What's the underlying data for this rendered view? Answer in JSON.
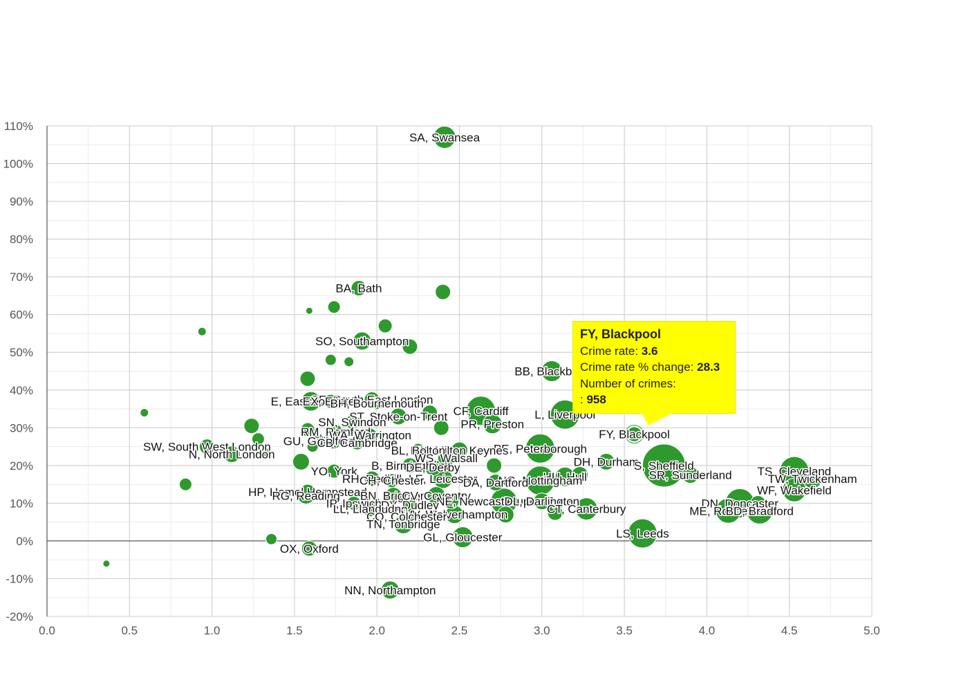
{
  "chart_data": {
    "type": "scatter",
    "subtype": "bubble",
    "xlim": [
      0,
      5
    ],
    "ylim": [
      -20,
      110
    ],
    "x_ticks": [
      "0.0",
      "0.5",
      "1.0",
      "1.5",
      "2.0",
      "2.5",
      "3.0",
      "3.5",
      "4.0",
      "4.5",
      "5.0"
    ],
    "y_ticks": [
      "110%",
      "100%",
      "90%",
      "80%",
      "70%",
      "60%",
      "50%",
      "40%",
      "30%",
      "20%",
      "10%",
      "0%",
      "-10%",
      "-20%"
    ],
    "grid": true,
    "bubble_color": "#2e9a2e",
    "highlight_label_color": "#ffff00",
    "points": [
      {
        "label": "SA, Swansea",
        "x": 2.41,
        "y": 107,
        "r": 16
      },
      {
        "label": "",
        "x": 2.4,
        "y": 66,
        "r": 11
      },
      {
        "label": "BA, Bath",
        "x": 1.89,
        "y": 67,
        "r": 11
      },
      {
        "label": "",
        "x": 1.59,
        "y": 61,
        "r": 5
      },
      {
        "label": "",
        "x": 1.74,
        "y": 62,
        "r": 9
      },
      {
        "label": "",
        "x": 2.05,
        "y": 57,
        "r": 10
      },
      {
        "label": "",
        "x": 0.94,
        "y": 55.5,
        "r": 6
      },
      {
        "label": "SO, Southampton",
        "x": 1.91,
        "y": 53,
        "r": 13
      },
      {
        "label": "",
        "x": 2.2,
        "y": 51.5,
        "r": 11
      },
      {
        "label": "",
        "x": 1.72,
        "y": 48,
        "r": 8
      },
      {
        "label": "",
        "x": 1.83,
        "y": 47.5,
        "r": 7
      },
      {
        "label": "BB, Blackburn",
        "x": 3.06,
        "y": 45,
        "r": 15
      },
      {
        "label": "",
        "x": 1.58,
        "y": 43,
        "r": 11
      },
      {
        "label": "SE, South East London",
        "x": 1.97,
        "y": 37.5,
        "r": 11
      },
      {
        "label": "E, East London",
        "x": 1.6,
        "y": 37,
        "r": 14
      },
      {
        "label": "EX, Exeter",
        "x": 1.72,
        "y": 37,
        "r": 10
      },
      {
        "label": "BH, Bournemouth",
        "x": 2.0,
        "y": 36.5,
        "r": 9
      },
      {
        "label": "",
        "x": 0.59,
        "y": 34,
        "r": 6
      },
      {
        "label": "",
        "x": 2.32,
        "y": 34,
        "r": 11
      },
      {
        "label": "CF, Cardiff",
        "x": 2.63,
        "y": 34.5,
        "r": 21
      },
      {
        "label": "L, Liverpool",
        "x": 3.14,
        "y": 33.5,
        "r": 21
      },
      {
        "label": "ST, Stoke-on-Trent",
        "x": 2.13,
        "y": 33,
        "r": 12
      },
      {
        "label": "SN, Swindon",
        "x": 1.85,
        "y": 31.5,
        "r": 10
      },
      {
        "label": "",
        "x": 1.24,
        "y": 30.5,
        "r": 11
      },
      {
        "label": "PR, Preston",
        "x": 2.7,
        "y": 31,
        "r": 14
      },
      {
        "label": "RM, Romford",
        "x": 1.75,
        "y": 29,
        "r": 10
      },
      {
        "label": "",
        "x": 2.39,
        "y": 30,
        "r": 11
      },
      {
        "label": "",
        "x": 1.58,
        "y": 29.5,
        "r": 10
      },
      {
        "label": "FY, Blackpool",
        "x": 3.56,
        "y": 28.3,
        "r": 11,
        "highlight": true
      },
      {
        "label": "WA, Warrington",
        "x": 1.96,
        "y": 28,
        "r": 10
      },
      {
        "label": "",
        "x": 1.28,
        "y": 27,
        "r": 9
      },
      {
        "label": "GU, Guildford",
        "x": 1.65,
        "y": 26.5,
        "r": 9
      },
      {
        "label": "CB, Cambridge",
        "x": 1.88,
        "y": 26,
        "r": 10
      },
      {
        "label": "",
        "x": 1.74,
        "y": 26,
        "r": 9
      },
      {
        "label": "PE, Peterborough",
        "x": 2.99,
        "y": 24.5,
        "r": 21
      },
      {
        "label": "SW, South West London",
        "x": 0.97,
        "y": 25,
        "r": 11
      },
      {
        "label": "MK, Milton Keynes",
        "x": 2.5,
        "y": 24,
        "r": 12
      },
      {
        "label": "BL, Bolton",
        "x": 2.25,
        "y": 24,
        "r": 10
      },
      {
        "label": "",
        "x": 1.61,
        "y": 25,
        "r": 8
      },
      {
        "label": "N, North London",
        "x": 1.12,
        "y": 23,
        "r": 12
      },
      {
        "label": "",
        "x": 1.33,
        "y": 23.5,
        "r": 6
      },
      {
        "label": "WS, Walsall",
        "x": 2.42,
        "y": 22,
        "r": 12
      },
      {
        "label": "",
        "x": 1.54,
        "y": 21,
        "r": 12
      },
      {
        "label": "DH, Durham",
        "x": 3.39,
        "y": 21,
        "r": 12
      },
      {
        "label": "S, Sheffield",
        "x": 3.74,
        "y": 20,
        "r": 31
      },
      {
        "label": "B, Birmingham",
        "x": 2.2,
        "y": 20,
        "r": 11
      },
      {
        "label": "DE, Derby",
        "x": 2.34,
        "y": 19.5,
        "r": 12
      },
      {
        "label": "",
        "x": 2.71,
        "y": 20,
        "r": 11
      },
      {
        "label": "YO, York",
        "x": 1.74,
        "y": 18.5,
        "r": 10
      },
      {
        "label": "TS, Cleveland",
        "x": 4.53,
        "y": 18.5,
        "r": 21
      },
      {
        "label": "SR, Sunderland",
        "x": 3.9,
        "y": 17.5,
        "r": 12
      },
      {
        "label": "TW, Twickenham",
        "x": 4.64,
        "y": 16.5,
        "r": 14
      },
      {
        "label": "HU, Hull",
        "x": 3.14,
        "y": 17,
        "r": 14
      },
      {
        "label": "",
        "x": 3.23,
        "y": 17.5,
        "r": 12
      },
      {
        "label": "NG, Nottingham",
        "x": 2.99,
        "y": 16,
        "r": 21
      },
      {
        "label": "LE, Leicester",
        "x": 2.4,
        "y": 16.5,
        "r": 14
      },
      {
        "label": "RH, Redhill",
        "x": 1.97,
        "y": 16.5,
        "r": 11
      },
      {
        "label": "CH, Chester",
        "x": 2.09,
        "y": 16,
        "r": 10
      },
      {
        "label": "DA, Dartford",
        "x": 2.72,
        "y": 15.5,
        "r": 12
      },
      {
        "label": "",
        "x": 0.84,
        "y": 15,
        "r": 9
      },
      {
        "label": "WF, Wakefield",
        "x": 4.53,
        "y": 13.5,
        "r": 17
      },
      {
        "label": "HP, Hemel Hempstead",
        "x": 1.58,
        "y": 13,
        "r": 11
      },
      {
        "label": "RG, Reading",
        "x": 1.57,
        "y": 12,
        "r": 12
      },
      {
        "label": "BN, Brighton",
        "x": 2.1,
        "y": 12,
        "r": 12
      },
      {
        "label": "CV, Coventry",
        "x": 2.36,
        "y": 12,
        "r": 13
      },
      {
        "label": "NE, Newcastle upon Tyne",
        "x": 2.77,
        "y": 10.5,
        "r": 19
      },
      {
        "label": "DL, Darlington",
        "x": 3.0,
        "y": 10.5,
        "r": 12
      },
      {
        "label": "IP, Ipswich",
        "x": 1.86,
        "y": 10,
        "r": 10
      },
      {
        "label": "",
        "x": 2.45,
        "y": 10.5,
        "r": 11
      },
      {
        "label": "DY, Dudley",
        "x": 2.2,
        "y": 9.5,
        "r": 10
      },
      {
        "label": "DN, Doncaster",
        "x": 4.2,
        "y": 10,
        "r": 21
      },
      {
        "label": "",
        "x": 4.31,
        "y": 10,
        "r": 11
      },
      {
        "label": "CT, Canterbury",
        "x": 3.27,
        "y": 8.5,
        "r": 16
      },
      {
        "label": "ME, Rochester",
        "x": 4.13,
        "y": 8,
        "r": 18
      },
      {
        "label": "BD, Bradford",
        "x": 4.32,
        "y": 8,
        "r": 19
      },
      {
        "label": "LL, Llandudno",
        "x": 1.96,
        "y": 8.5,
        "r": 11
      },
      {
        "label": "WV, Wolverhampton",
        "x": 2.47,
        "y": 7,
        "r": 13
      },
      {
        "label": "",
        "x": 2.78,
        "y": 7,
        "r": 12
      },
      {
        "label": "CO, Colchester",
        "x": 2.18,
        "y": 6.5,
        "r": 12
      },
      {
        "label": "",
        "x": 3.08,
        "y": 7.5,
        "r": 11
      },
      {
        "label": "TN, Tonbridge",
        "x": 2.16,
        "y": 4.5,
        "r": 14
      },
      {
        "label": "LS, Leeds",
        "x": 3.61,
        "y": 2,
        "r": 21
      },
      {
        "label": "GL, Gloucester",
        "x": 2.52,
        "y": 1,
        "r": 15
      },
      {
        "label": "",
        "x": 1.36,
        "y": 0.5,
        "r": 8
      },
      {
        "label": "OX, Oxford",
        "x": 1.59,
        "y": -2,
        "r": 11
      },
      {
        "label": "",
        "x": 0.36,
        "y": -6,
        "r": 5
      },
      {
        "label": "NN, Northampton",
        "x": 2.08,
        "y": -13,
        "r": 13
      }
    ]
  },
  "tooltip": {
    "title": "FY, Blackpool",
    "rate_label": "Crime rate: ",
    "rate_value": "3.6",
    "change_label": "Crime rate % change: ",
    "change_value": "28.3",
    "count_label": "Number of crimes:",
    "count_prefix": ": ",
    "count_value": "958"
  }
}
